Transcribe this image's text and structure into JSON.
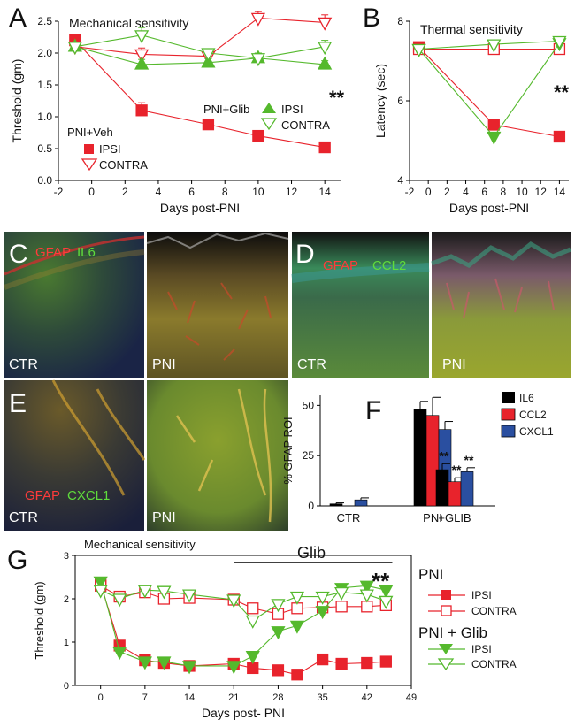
{
  "panel_letters": {
    "A": "A",
    "B": "B",
    "C": "C",
    "D": "D",
    "E": "E",
    "F": "F",
    "G": "G"
  },
  "colors": {
    "veh": "#e8232c",
    "glib": "#55b92d",
    "il6": "#000000",
    "ccl2": "#e8232c",
    "cxcl1": "#2a4fa0"
  },
  "chart_data": [
    {
      "id": "A",
      "type": "line",
      "title": "Mechanical sensitivity",
      "xlabel": "Days post-PNI",
      "ylabel": "Threshold (gm)",
      "xlim": [
        -2,
        15
      ],
      "ylim": [
        0,
        2.5
      ],
      "x_ticks": [
        "-2",
        "0",
        "2",
        "4",
        "6",
        "8",
        "10",
        "12",
        "14"
      ],
      "y_ticks": [
        "0.0",
        "0.5",
        "1.0",
        "1.5",
        "2.0",
        "2.5"
      ],
      "legend_groups": [
        "PNI+Veh",
        "PNI+Glib"
      ],
      "series": [
        {
          "name": "IPSI",
          "group": "PNI+Veh",
          "x": [
            -1,
            3,
            7,
            10,
            14
          ],
          "y": [
            2.2,
            1.1,
            0.88,
            0.7,
            0.52
          ],
          "err": [
            0.06,
            0.12,
            0.05,
            0.06,
            0.05
          ]
        },
        {
          "name": "CONTRA",
          "group": "PNI+Veh",
          "x": [
            -1,
            3,
            7,
            10,
            14
          ],
          "y": [
            2.1,
            1.98,
            1.95,
            2.55,
            2.48
          ],
          "err": [
            0.05,
            0.1,
            0.06,
            0.1,
            0.12
          ]
        },
        {
          "name": "IPSI",
          "group": "PNI+Glib",
          "x": [
            -1,
            3,
            7,
            10,
            14
          ],
          "y": [
            2.1,
            1.82,
            1.85,
            1.92,
            1.82
          ],
          "err": [
            0.05,
            0.08,
            0.06,
            0.08,
            0.06
          ]
        },
        {
          "name": "CONTRA",
          "group": "PNI+Glib",
          "x": [
            -1,
            3,
            7,
            10,
            14
          ],
          "y": [
            2.1,
            2.28,
            2.0,
            1.92,
            2.1
          ],
          "err": [
            0.05,
            0.12,
            0.06,
            0.08,
            0.1
          ]
        }
      ],
      "annotation": "**"
    },
    {
      "id": "B",
      "type": "line",
      "title": "Thermal sensitivity",
      "xlabel": "Days post-PNI",
      "ylabel": "Latency (sec)",
      "xlim": [
        -2,
        15
      ],
      "ylim": [
        4,
        8
      ],
      "x_ticks": [
        "-2",
        "0",
        "2",
        "4",
        "6",
        "8",
        "10",
        "12",
        "14"
      ],
      "y_ticks": [
        "4",
        "6",
        "8"
      ],
      "series": [
        {
          "name": "IPSI",
          "group": "PNI+Veh",
          "x": [
            -1,
            7,
            14
          ],
          "y": [
            7.35,
            5.4,
            5.1
          ]
        },
        {
          "name": "CONTRA",
          "group": "PNI+Veh",
          "x": [
            -1,
            7,
            14
          ],
          "y": [
            7.3,
            7.3,
            7.3
          ]
        },
        {
          "name": "IPSI",
          "group": "PNI+Glib",
          "x": [
            -1,
            7,
            14
          ],
          "y": [
            7.3,
            5.1,
            7.45
          ]
        },
        {
          "name": "CONTRA",
          "group": "PNI+Glib",
          "x": [
            -1,
            7,
            14
          ],
          "y": [
            7.3,
            7.42,
            7.5
          ]
        }
      ],
      "annotation": "**"
    },
    {
      "id": "F",
      "type": "bar",
      "ylabel": "% GFAP ROI",
      "categories": [
        "CTR",
        "PNI",
        "+GLIB"
      ],
      "ylim": [
        0,
        55
      ],
      "y_ticks": [
        "0",
        "25",
        "50"
      ],
      "series": [
        {
          "name": "IL6",
          "values": [
            1,
            48,
            18
          ],
          "err": [
            0.5,
            4,
            3
          ]
        },
        {
          "name": "CCL2",
          "values": [
            0,
            45,
            12
          ],
          "err": [
            0,
            9,
            2
          ]
        },
        {
          "name": "CXCL1",
          "values": [
            3,
            38,
            17
          ],
          "err": [
            1,
            4,
            2
          ]
        }
      ],
      "annotations": [
        "**",
        "**",
        "**"
      ]
    },
    {
      "id": "G",
      "type": "line",
      "title": "Mechanical sensitivity",
      "xlabel": "Days post- PNI",
      "ylabel": "Threshold (gm)",
      "xlim": [
        -4,
        49
      ],
      "ylim": [
        0,
        3
      ],
      "x_ticks": [
        "0",
        "7",
        "14",
        "21",
        "28",
        "35",
        "42",
        "49"
      ],
      "y_ticks": [
        "0",
        "1",
        "2",
        "3"
      ],
      "treatment_label": "Glib",
      "treatment_days": [
        21,
        46
      ],
      "legend_groups": [
        "PNI",
        "PNI + Glib"
      ],
      "series": [
        {
          "name": "IPSI",
          "group": "PNI",
          "x": [
            0,
            3,
            7,
            10,
            14,
            21,
            24,
            28,
            31,
            35,
            38,
            42,
            45
          ],
          "y": [
            2.35,
            0.92,
            0.58,
            0.52,
            0.45,
            0.5,
            0.4,
            0.35,
            0.25,
            0.6,
            0.5,
            0.52,
            0.55
          ]
        },
        {
          "name": "CONTRA",
          "group": "PNI",
          "x": [
            0,
            3,
            7,
            10,
            14,
            21,
            24,
            28,
            31,
            35,
            38,
            42,
            45
          ],
          "y": [
            2.3,
            2.05,
            2.15,
            2.0,
            2.02,
            1.98,
            1.78,
            1.65,
            1.78,
            1.8,
            1.82,
            1.82,
            1.85
          ]
        },
        {
          "name": "IPSI",
          "group": "PNI + Glib",
          "x": [
            0,
            3,
            7,
            10,
            14,
            21,
            24,
            28,
            31,
            35,
            38,
            42,
            45
          ],
          "y": [
            2.4,
            0.78,
            0.55,
            0.55,
            0.45,
            0.45,
            0.68,
            1.25,
            1.38,
            1.72,
            2.25,
            2.3,
            2.2
          ]
        },
        {
          "name": "CONTRA",
          "group": "PNI + Glib",
          "x": [
            0,
            3,
            7,
            10,
            14,
            21,
            24,
            28,
            31,
            35,
            38,
            42,
            45
          ],
          "y": [
            2.2,
            2.0,
            2.2,
            2.18,
            2.1,
            1.98,
            1.5,
            1.88,
            2.05,
            2.05,
            2.15,
            2.1,
            1.95
          ]
        }
      ],
      "annotation": "**"
    }
  ],
  "micrographs": {
    "C": {
      "marker1": "GFAP",
      "marker2": "IL6",
      "ctr": "CTR",
      "pni": "PNI"
    },
    "D": {
      "marker1": "GFAP",
      "marker2": "CCL2",
      "ctr": "CTR",
      "pni": "PNI"
    },
    "E": {
      "marker1": "GFAP",
      "marker2": "CXCL1",
      "ctr": "CTR",
      "pni": "PNI"
    }
  }
}
